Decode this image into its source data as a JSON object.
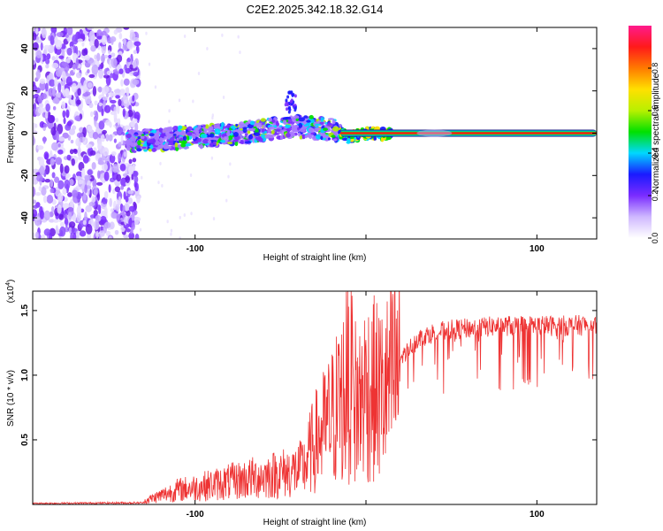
{
  "title": "C2E2.2025.342.18.32.G14",
  "chart_data": [
    {
      "type": "heatmap",
      "name": "spectrogram",
      "xlabel": "Height of straight line (km)",
      "ylabel": "Frequency (Hz)",
      "xlim": [
        -195,
        135
      ],
      "ylim": [
        -50,
        50
      ],
      "xticks": [
        -100,
        0,
        100
      ],
      "xtick_labels": [
        "-100",
        "",
        "100"
      ],
      "yticks": [
        -40,
        -20,
        0,
        20,
        40
      ],
      "ytick_labels": [
        "-40",
        "-20",
        "0",
        "20",
        "40"
      ],
      "noise_region_x": [
        -195,
        -133
      ],
      "trace": {
        "x": [
          -140,
          -120,
          -100,
          -80,
          -60,
          -40,
          -20,
          -10,
          0,
          10,
          20,
          40,
          60,
          80,
          100,
          120,
          135
        ],
        "freq": [
          -4,
          -3,
          -1.5,
          -0.5,
          1.5,
          3,
          2,
          -2,
          0,
          -0.5,
          0,
          0,
          0,
          0,
          0,
          0,
          0
        ]
      },
      "colorbar": {
        "label": "Normalized spectral amplitude",
        "range": [
          0,
          1
        ],
        "ticks": [
          0.0,
          0.2,
          0.4,
          0.6,
          0.8
        ],
        "tick_labels": [
          "0.0",
          "0.2",
          "0.4",
          "0.6",
          "0.8"
        ],
        "colors": [
          "#ffffff",
          "#cfb8ff",
          "#7a2cff",
          "#1a1aff",
          "#00d8ff",
          "#00e000",
          "#b8f000",
          "#ffe000",
          "#ff7a00",
          "#ff1a1a",
          "#ff1a8c"
        ]
      }
    },
    {
      "type": "line",
      "name": "snr",
      "xlabel": "Height of straight line (km)",
      "ylabel": "SNR (10 * v/v)",
      "scale_label": "(x10",
      "scale_exp": "4",
      "scale_close": ")",
      "xlim": [
        -195,
        135
      ],
      "ylim": [
        0,
        16500
      ],
      "xticks": [
        -100,
        0,
        100
      ],
      "xtick_labels": [
        "-100",
        "",
        "100"
      ],
      "yticks": [
        5000,
        10000,
        15000
      ],
      "ytick_labels": [
        "0.5",
        "1.0",
        "1.5"
      ],
      "color": "#ee3333",
      "envelope": {
        "x": [
          -195,
          -130,
          -120,
          -110,
          -100,
          -80,
          -60,
          -40,
          -35,
          -30,
          -20,
          -15,
          -10,
          -5,
          0,
          10,
          20,
          30,
          40,
          50,
          60,
          80,
          100,
          120,
          135
        ],
        "y": [
          200,
          300,
          800,
          1300,
          1500,
          2000,
          2500,
          3000,
          3500,
          5000,
          7000,
          8500,
          10000,
          8000,
          9500,
          9000,
          11000,
          12500,
          13000,
          13200,
          13300,
          13500,
          13500,
          13500,
          13600
        ]
      }
    }
  ]
}
